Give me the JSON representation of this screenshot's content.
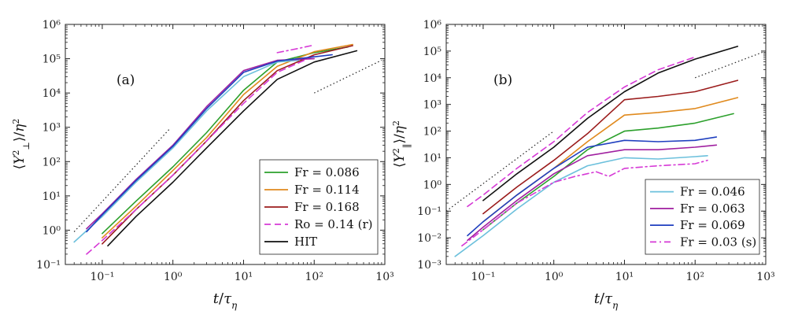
{
  "figure": {
    "colors": {
      "green": "#2ca02c",
      "orange": "#e08a1e",
      "darkred": "#9b1c1c",
      "magenta": "#d63ad6",
      "black": "#111111",
      "lightblue": "#6cc0dc",
      "purple": "#a020a0",
      "blue": "#1f3fbf"
    }
  },
  "chart_data": [
    {
      "type": "line",
      "panel_label": "(a)",
      "xlabel": "t/τ_η",
      "ylabel": "⟨Y⊥²⟩/η²",
      "xscale": "log",
      "yscale": "log",
      "xlim": [
        0.03,
        1000
      ],
      "ylim": [
        0.1,
        1000000
      ],
      "x_ticks": [
        "10⁻¹",
        "10⁰",
        "10¹",
        "10²",
        "10³"
      ],
      "y_ticks": [
        "10⁻¹",
        "10⁰",
        "10¹",
        "10²",
        "10³",
        "10⁴",
        "10⁵",
        "10⁶"
      ],
      "legend": {
        "placement": "bottom-right",
        "entries": [
          {
            "label": "Fr = 0.086",
            "color": "green",
            "dash": "solid"
          },
          {
            "label": "Fr = 0.114",
            "color": "orange",
            "dash": "solid"
          },
          {
            "label": "Fr = 0.168",
            "color": "darkred",
            "dash": "solid"
          },
          {
            "label": "Ro = 0.14 (r)",
            "color": "magenta",
            "dash": "dashed"
          },
          {
            "label": "HIT",
            "color": "black",
            "dash": "solid"
          }
        ]
      },
      "series": [
        {
          "name": "Fr = 0.086",
          "color": "green",
          "dash": "solid",
          "x": [
            0.1,
            0.3,
            1,
            3,
            10,
            30,
            100,
            300
          ],
          "y": [
            0.8,
            7,
            70,
            700,
            12000,
            80000,
            150000,
            220000
          ]
        },
        {
          "name": "Fr = 0.114",
          "color": "orange",
          "dash": "solid",
          "x": [
            0.1,
            0.3,
            1,
            3,
            10,
            30,
            100,
            350
          ],
          "y": [
            0.6,
            5,
            55,
            500,
            9000,
            60000,
            160000,
            260000
          ]
        },
        {
          "name": "Fr = 0.168",
          "color": "darkred",
          "dash": "solid",
          "x": [
            0.1,
            0.3,
            1,
            3,
            10,
            30,
            100,
            350
          ],
          "y": [
            0.4,
            4,
            40,
            400,
            6000,
            45000,
            130000,
            240000
          ]
        },
        {
          "name": "Ro = 0.14 (r)",
          "color": "magenta",
          "dash": "dashed",
          "x": [
            0.06,
            0.1,
            0.3,
            1,
            3,
            10,
            30,
            100
          ],
          "y": [
            0.2,
            0.5,
            4,
            40,
            400,
            5000,
            40000,
            120000
          ]
        },
        {
          "name": "HIT",
          "color": "black",
          "dash": "solid",
          "x": [
            0.12,
            0.3,
            1,
            3,
            10,
            30,
            100,
            400
          ],
          "y": [
            0.35,
            2.5,
            25,
            250,
            3000,
            25000,
            80000,
            170000
          ]
        },
        {
          "color": "lightblue",
          "dash": "solid",
          "x": [
            0.04,
            0.1,
            0.3,
            1,
            3,
            10,
            30,
            60
          ],
          "y": [
            0.45,
            2.5,
            25,
            250,
            3000,
            30000,
            80000,
            90000
          ]
        },
        {
          "color": "purple",
          "dash": "solid",
          "x": [
            0.06,
            0.1,
            0.3,
            1,
            3,
            10,
            30,
            100
          ],
          "y": [
            1.1,
            3,
            30,
            300,
            4000,
            45000,
            90000,
            100000
          ]
        },
        {
          "color": "blue",
          "dash": "solid",
          "x": [
            0.06,
            0.1,
            0.3,
            1,
            3,
            10,
            30,
            180
          ],
          "y": [
            0.9,
            2.8,
            28,
            280,
            3500,
            40000,
            85000,
            130000
          ]
        },
        {
          "color": "magenta",
          "dash": "dashdot",
          "x": [
            30,
            60,
            100
          ],
          "y": [
            150000,
            200000,
            250000
          ]
        }
      ],
      "reference_lines": [
        {
          "slope": 2,
          "dash": "dotted",
          "x": [
            0.04,
            0.9
          ],
          "y": [
            0.9,
            900
          ]
        },
        {
          "slope": 1,
          "dash": "dotted",
          "x": [
            100,
            900
          ],
          "y": [
            10000,
            90000
          ]
        }
      ]
    },
    {
      "type": "line",
      "panel_label": "(b)",
      "xlabel": "t/τ_η",
      "ylabel": "⟨Y‖²⟩/η²",
      "xscale": "log",
      "yscale": "log",
      "xlim": [
        0.03,
        1000
      ],
      "ylim": [
        0.001,
        1000000
      ],
      "x_ticks": [
        "10⁻¹",
        "10⁰",
        "10¹",
        "10²",
        "10³"
      ],
      "y_ticks": [
        "10⁻³",
        "10⁻²",
        "10⁻¹",
        "10⁰",
        "10¹",
        "10²",
        "10³",
        "10⁴",
        "10⁵",
        "10⁶"
      ],
      "legend": {
        "placement": "bottom-right",
        "entries": [
          {
            "label": "Fr = 0.046",
            "color": "lightblue",
            "dash": "solid"
          },
          {
            "label": "Fr = 0.063",
            "color": "purple",
            "dash": "solid"
          },
          {
            "label": "Fr = 0.069",
            "color": "blue",
            "dash": "solid"
          },
          {
            "label": "Fr = 0.03 (s)",
            "color": "magenta",
            "dash": "dashdot"
          }
        ]
      },
      "series": [
        {
          "name": "HIT",
          "color": "black",
          "dash": "solid",
          "x": [
            0.1,
            0.3,
            1,
            3,
            10,
            30,
            100,
            400
          ],
          "y": [
            0.25,
            2.5,
            25,
            300,
            3000,
            15000,
            50000,
            150000
          ]
        },
        {
          "color": "magenta",
          "dash": "dashed",
          "x": [
            0.06,
            0.1,
            0.3,
            1,
            3,
            10,
            30,
            100
          ],
          "y": [
            0.15,
            0.4,
            4,
            40,
            500,
            4500,
            20000,
            60000
          ]
        },
        {
          "color": "darkred",
          "dash": "solid",
          "x": [
            0.1,
            0.3,
            1,
            3,
            10,
            30,
            100,
            400
          ],
          "y": [
            0.08,
            0.8,
            8,
            80,
            1500,
            2000,
            3000,
            8000
          ]
        },
        {
          "color": "orange",
          "dash": "solid",
          "x": [
            0.1,
            0.3,
            1,
            3,
            10,
            30,
            100,
            400
          ],
          "y": [
            0.04,
            0.4,
            4,
            40,
            400,
            500,
            700,
            1800
          ]
        },
        {
          "color": "green",
          "dash": "solid",
          "x": [
            0.1,
            0.3,
            1,
            3,
            10,
            30,
            100,
            350
          ],
          "y": [
            0.02,
            0.2,
            2,
            20,
            100,
            130,
            200,
            450
          ]
        },
        {
          "name": "Fr = 0.069",
          "color": "blue",
          "dash": "solid",
          "x": [
            0.06,
            0.1,
            0.3,
            1,
            3,
            10,
            30,
            100,
            200
          ],
          "y": [
            0.012,
            0.04,
            0.4,
            4,
            25,
            45,
            40,
            45,
            60
          ]
        },
        {
          "name": "Fr = 0.063",
          "color": "purple",
          "dash": "solid",
          "x": [
            0.06,
            0.1,
            0.3,
            1,
            3,
            10,
            30,
            100,
            200
          ],
          "y": [
            0.008,
            0.025,
            0.25,
            2.5,
            12,
            20,
            20,
            25,
            30
          ]
        },
        {
          "name": "Fr = 0.046",
          "color": "lightblue",
          "dash": "solid",
          "x": [
            0.04,
            0.1,
            0.3,
            1,
            3,
            10,
            30,
            100,
            150
          ],
          "y": [
            0.002,
            0.012,
            0.12,
            1.2,
            5,
            10,
            9,
            11,
            12
          ]
        },
        {
          "name": "Fr = 0.03 (s)",
          "color": "magenta",
          "dash": "dashdot",
          "x": [
            0.05,
            0.1,
            0.3,
            1,
            2,
            4,
            6,
            10,
            30,
            100,
            150
          ],
          "y": [
            0.005,
            0.02,
            0.2,
            1.2,
            2,
            3,
            2,
            4,
            5,
            6,
            8
          ]
        }
      ],
      "reference_lines": [
        {
          "slope": 2,
          "dash": "dotted",
          "x": [
            0.03,
            1
          ],
          "y": [
            0.1,
            100
          ]
        },
        {
          "slope": 1,
          "dash": "dotted",
          "x": [
            100,
            900
          ],
          "y": [
            10000,
            90000
          ]
        }
      ]
    }
  ]
}
